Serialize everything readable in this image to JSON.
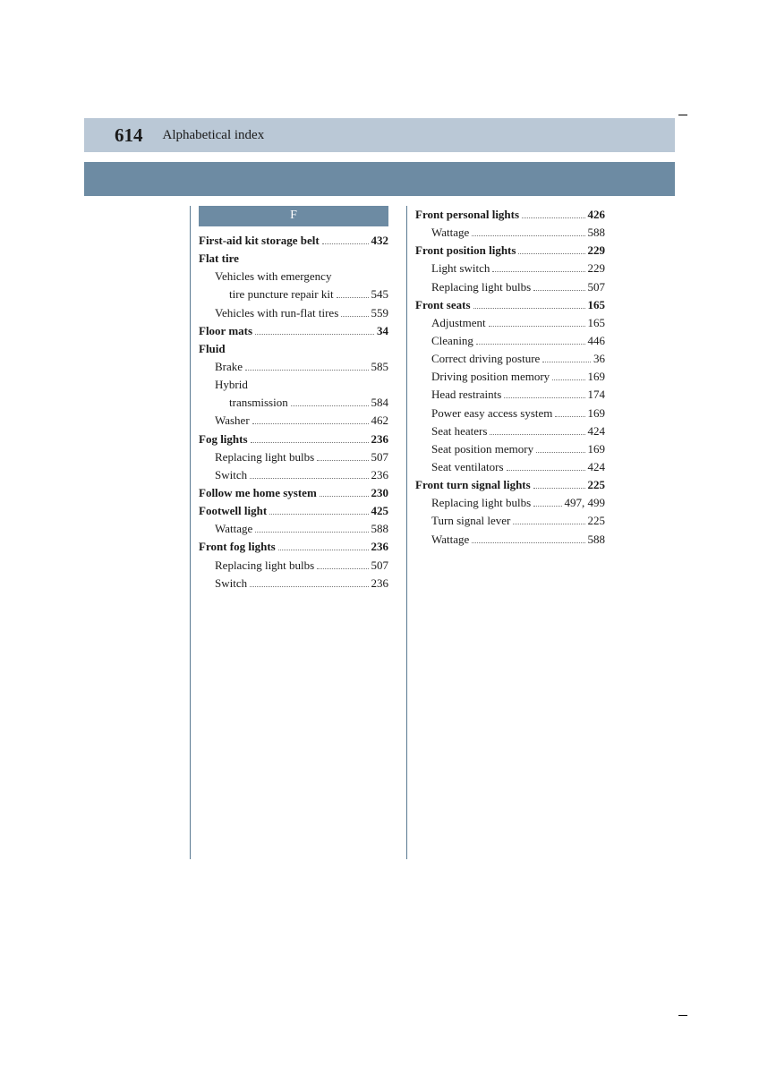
{
  "page_number": "614",
  "section_title": "Alphabetical index",
  "letter_header": "F",
  "colors": {
    "header_band": "#bac8d6",
    "blue_band": "#6d8ba3",
    "divider": "#5a7a92",
    "text": "#1a1a1a",
    "background": "#ffffff"
  },
  "left_col": [
    {
      "label": "First-aid kit storage belt",
      "page": "432",
      "indent": 0,
      "bold": true
    },
    {
      "label": "Flat tire",
      "page": "",
      "indent": 0,
      "bold": true
    },
    {
      "label": "Vehicles with emergency",
      "page": "",
      "indent": 1,
      "bold": false,
      "nopage": true
    },
    {
      "label": "tire puncture repair kit",
      "page": "545",
      "indent": 2,
      "bold": false
    },
    {
      "label": "Vehicles with run-flat tires",
      "page": "559",
      "indent": 1,
      "bold": false
    },
    {
      "label": "Floor mats",
      "page": "34",
      "indent": 0,
      "bold": true
    },
    {
      "label": "Fluid",
      "page": "",
      "indent": 0,
      "bold": true,
      "nopage": true
    },
    {
      "label": "Brake",
      "page": "585",
      "indent": 1,
      "bold": false
    },
    {
      "label": "Hybrid",
      "page": "",
      "indent": 1,
      "bold": false,
      "nopage": true
    },
    {
      "label": "transmission",
      "page": "584",
      "indent": 2,
      "bold": false
    },
    {
      "label": "Washer",
      "page": "462",
      "indent": 1,
      "bold": false
    },
    {
      "label": "Fog lights",
      "page": "236",
      "indent": 0,
      "bold": true
    },
    {
      "label": "Replacing light bulbs",
      "page": "507",
      "indent": 1,
      "bold": false
    },
    {
      "label": "Switch",
      "page": "236",
      "indent": 1,
      "bold": false
    },
    {
      "label": "Follow me home system",
      "page": "230",
      "indent": 0,
      "bold": true
    },
    {
      "label": "Footwell light",
      "page": "425",
      "indent": 0,
      "bold": true
    },
    {
      "label": "Wattage",
      "page": "588",
      "indent": 1,
      "bold": false
    },
    {
      "label": "Front fog lights",
      "page": "236",
      "indent": 0,
      "bold": true
    },
    {
      "label": "Replacing light bulbs",
      "page": "507",
      "indent": 1,
      "bold": false
    },
    {
      "label": "Switch",
      "page": "236",
      "indent": 1,
      "bold": false
    }
  ],
  "right_col": [
    {
      "label": "Front personal lights",
      "page": "426",
      "indent": 0,
      "bold": true
    },
    {
      "label": "Wattage",
      "page": "588",
      "indent": 1,
      "bold": false
    },
    {
      "label": "Front position lights",
      "page": "229",
      "indent": 0,
      "bold": true
    },
    {
      "label": "Light switch",
      "page": "229",
      "indent": 1,
      "bold": false
    },
    {
      "label": "Replacing light bulbs",
      "page": "507",
      "indent": 1,
      "bold": false
    },
    {
      "label": "Front seats",
      "page": "165",
      "indent": 0,
      "bold": true
    },
    {
      "label": "Adjustment",
      "page": "165",
      "indent": 1,
      "bold": false
    },
    {
      "label": "Cleaning",
      "page": "446",
      "indent": 1,
      "bold": false
    },
    {
      "label": "Correct driving posture",
      "page": "36",
      "indent": 1,
      "bold": false
    },
    {
      "label": "Driving position memory",
      "page": "169",
      "indent": 1,
      "bold": false
    },
    {
      "label": "Head restraints",
      "page": "174",
      "indent": 1,
      "bold": false
    },
    {
      "label": "Power easy access system",
      "page": "169",
      "indent": 1,
      "bold": false
    },
    {
      "label": "Seat heaters",
      "page": "424",
      "indent": 1,
      "bold": false
    },
    {
      "label": "Seat position memory",
      "page": "169",
      "indent": 1,
      "bold": false
    },
    {
      "label": "Seat ventilators",
      "page": "424",
      "indent": 1,
      "bold": false
    },
    {
      "label": "Front turn signal lights",
      "page": "225",
      "indent": 0,
      "bold": true
    },
    {
      "label": "Replacing light bulbs",
      "page": "497, 499",
      "indent": 1,
      "bold": false
    },
    {
      "label": "Turn signal lever",
      "page": "225",
      "indent": 1,
      "bold": false
    },
    {
      "label": "Wattage",
      "page": "588",
      "indent": 1,
      "bold": false
    }
  ]
}
